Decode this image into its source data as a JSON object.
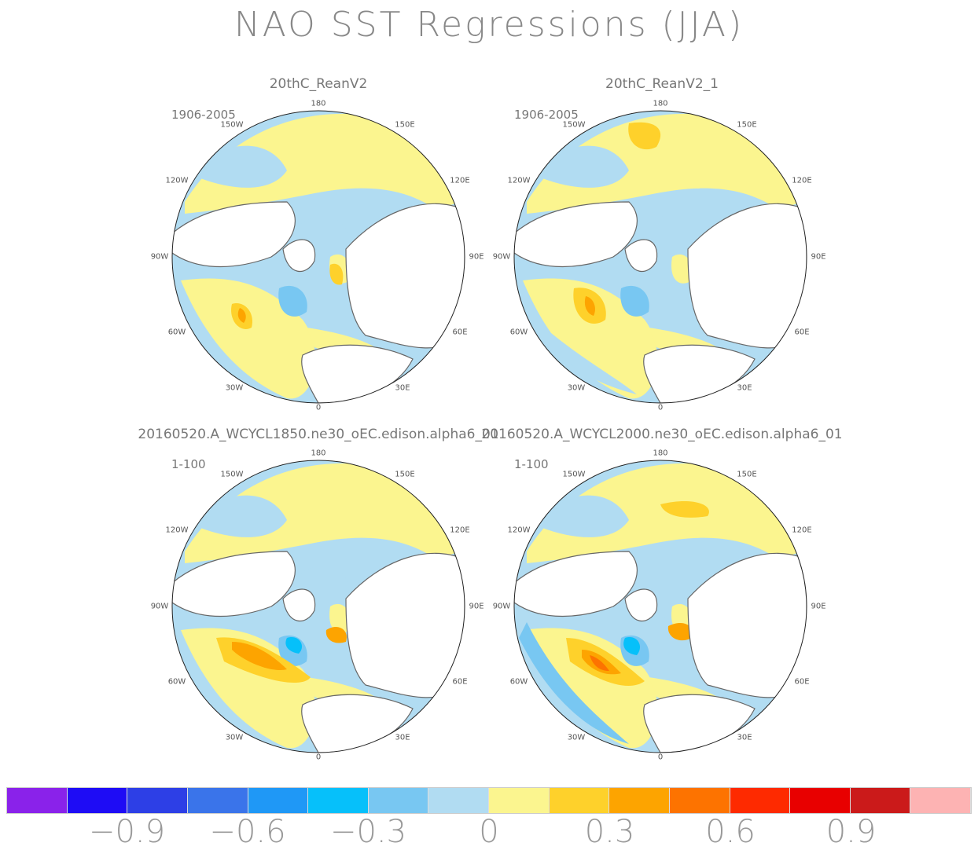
{
  "title": "NAO SST Regressions (JJA)",
  "panels": [
    {
      "title": "20thC_ReanV2",
      "period": "1906-2005"
    },
    {
      "title": "20thC_ReanV2_1",
      "period": "1906-2005"
    },
    {
      "title": "20160520.A_WCYCL1850.ne30_oEC.edison.alpha6_01",
      "period": "1-100"
    },
    {
      "title": "20160520.A_WCYCL2000.ne30_oEC.edison.alpha6_01",
      "period": "1-100"
    }
  ],
  "longitude_labels": {
    "top": "180",
    "top_right": "150E",
    "top_left": "150W",
    "upper_right": "120E",
    "upper_left": "120W",
    "right": "90E",
    "left": "90W",
    "lower_right": "60E",
    "lower_left": "60W",
    "bottom_right": "30E",
    "bottom_left": "30W",
    "bottom": "0"
  },
  "colorbar": {
    "colors": [
      "#8a22ea",
      "#1e0cf5",
      "#2d3fe6",
      "#3a74ea",
      "#1f98f6",
      "#06c0fa",
      "#78c7f2",
      "#b1dcf2",
      "#fbf58f",
      "#fed12b",
      "#fda400",
      "#fd7300",
      "#fe2a00",
      "#e80000",
      "#cb1a1a",
      "#fdb3b3"
    ],
    "tick_labels": [
      "-0.9",
      "-0.6",
      "-0.3",
      "0",
      "0.3",
      "0.6",
      "0.9"
    ]
  }
}
